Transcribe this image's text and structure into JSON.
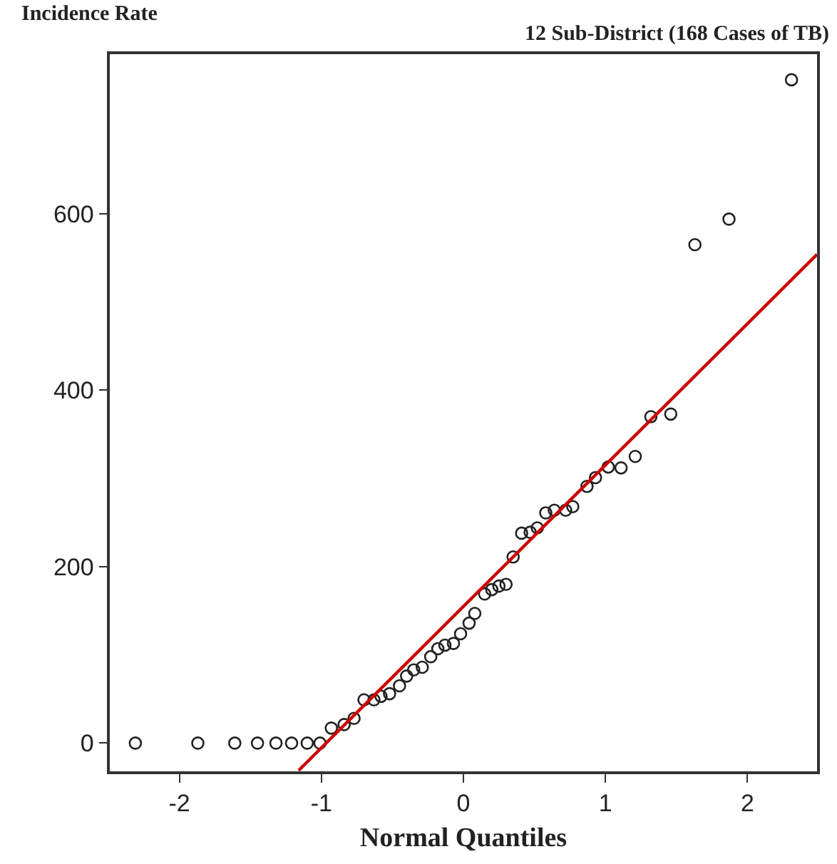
{
  "chart_data": {
    "type": "scatter",
    "title": "12 Sub-District (168 Cases of TB)",
    "xlabel": "Normal Quantiles",
    "ylabel": "Incidence Rate",
    "xlim": [
      -2.49,
      2.49
    ],
    "ylim": [
      -32,
      781
    ],
    "xticks": [
      -2,
      -1,
      0,
      1,
      2
    ],
    "yticks": [
      0,
      200,
      400,
      600
    ],
    "legend": false,
    "marker": "circle",
    "series": [
      {
        "color": "#222222",
        "x": [
          -2.31,
          -1.87,
          -1.61,
          -1.45,
          -1.32,
          -1.21,
          -1.1,
          -1.01,
          -0.93,
          -0.84,
          -0.77,
          -0.7,
          -0.63,
          -0.58,
          -0.52,
          -0.45,
          -0.4,
          -0.35,
          -0.29,
          -0.23,
          -0.18,
          -0.13,
          -0.07,
          -0.02,
          0.04,
          0.08,
          0.15,
          0.2,
          0.25,
          0.3,
          0.35,
          0.41,
          0.47,
          0.52,
          0.58,
          0.64,
          0.72,
          0.77,
          0.87,
          0.93,
          1.02,
          1.11,
          1.21,
          1.32,
          1.46,
          1.63,
          1.87,
          2.31
        ],
        "values": [
          0,
          0,
          0,
          0,
          0,
          0,
          0,
          0,
          17,
          21,
          28,
          49,
          49,
          53,
          56,
          65,
          76,
          83,
          86,
          98,
          107,
          111,
          113,
          124,
          136,
          147,
          169,
          174,
          178,
          180,
          211,
          238,
          239,
          244,
          261,
          264,
          264,
          268,
          291,
          301,
          313,
          312,
          325,
          370,
          373,
          565,
          594,
          752
        ]
      },
      {
        "type": "line",
        "color": "#cc0000",
        "marker": "none",
        "line_style": "solid",
        "x": [
          -1.16,
          2.49
        ],
        "values": [
          -31,
          554
        ]
      }
    ]
  }
}
